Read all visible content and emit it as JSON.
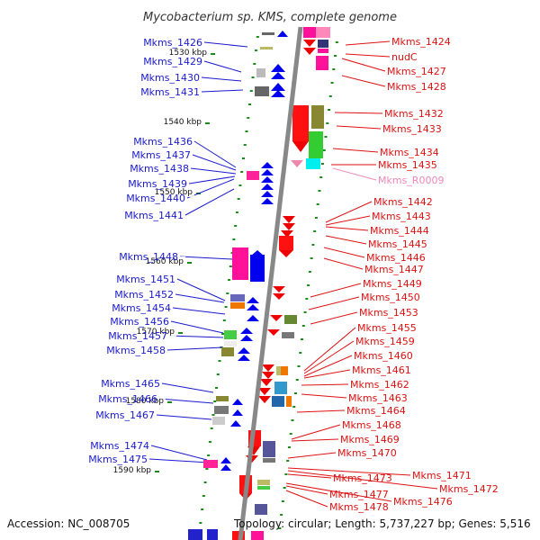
{
  "title": "Mycobacterium sp. KMS, complete genome",
  "accession": "Accession: NC_008705",
  "topology": "Topology: circular; Length: 5,737,227 bp; Genes: 5,516",
  "colors": {
    "left_label": "#1a1acc",
    "right_label": "#dd1111",
    "rna_label": "#ee88bb",
    "backbone": "#888888",
    "tick": "#1a8a1a"
  },
  "scale": [
    {
      "label": "1530 kbp"
    },
    {
      "label": "1540 kbp"
    },
    {
      "label": "1550 kbp"
    },
    {
      "label": "1560 kbp"
    },
    {
      "label": "1570 kbp"
    },
    {
      "label": "1580 kbp"
    },
    {
      "label": "1590 kbp"
    }
  ],
  "left_genes": [
    {
      "label": "Mkms_1426"
    },
    {
      "label": "Mkms_1429"
    },
    {
      "label": "Mkms_1430"
    },
    {
      "label": "Mkms_1431"
    },
    {
      "label": "Mkms_1436"
    },
    {
      "label": "Mkms_1437"
    },
    {
      "label": "Mkms_1438"
    },
    {
      "label": "Mkms_1439"
    },
    {
      "label": "Mkms_1440"
    },
    {
      "label": "Mkms_1441"
    },
    {
      "label": "Mkms_1448"
    },
    {
      "label": "Mkms_1451"
    },
    {
      "label": "Mkms_1452"
    },
    {
      "label": "Mkms_1454"
    },
    {
      "label": "Mkms_1456"
    },
    {
      "label": "Mkms_1457"
    },
    {
      "label": "Mkms_1458"
    },
    {
      "label": "Mkms_1465"
    },
    {
      "label": "Mkms_1466"
    },
    {
      "label": "Mkms_1467"
    },
    {
      "label": "Mkms_1474"
    },
    {
      "label": "Mkms_1475"
    }
  ],
  "right_genes": [
    {
      "label": "Mkms_1424"
    },
    {
      "label": "nudC"
    },
    {
      "label": "Mkms_1427"
    },
    {
      "label": "Mkms_1428"
    },
    {
      "label": "Mkms_1432"
    },
    {
      "label": "Mkms_1433"
    },
    {
      "label": "Mkms_1434"
    },
    {
      "label": "Mkms_1435"
    },
    {
      "label": "Mkms_R0009"
    },
    {
      "label": "Mkms_1442"
    },
    {
      "label": "Mkms_1443"
    },
    {
      "label": "Mkms_1444"
    },
    {
      "label": "Mkms_1445"
    },
    {
      "label": "Mkms_1446"
    },
    {
      "label": "Mkms_1447"
    },
    {
      "label": "Mkms_1449"
    },
    {
      "label": "Mkms_1450"
    },
    {
      "label": "Mkms_1453"
    },
    {
      "label": "Mkms_1455"
    },
    {
      "label": "Mkms_1459"
    },
    {
      "label": "Mkms_1460"
    },
    {
      "label": "Mkms_1461"
    },
    {
      "label": "Mkms_1462"
    },
    {
      "label": "Mkms_1463"
    },
    {
      "label": "Mkms_1464"
    },
    {
      "label": "Mkms_1468"
    },
    {
      "label": "Mkms_1469"
    },
    {
      "label": "Mkms_1470"
    },
    {
      "label": "Mkms_1471"
    },
    {
      "label": "Mkms_1472"
    },
    {
      "label": "Mkms_1473"
    },
    {
      "label": "Mkms_1476"
    },
    {
      "label": "Mkms_1477"
    },
    {
      "label": "Mkms_1478"
    }
  ]
}
